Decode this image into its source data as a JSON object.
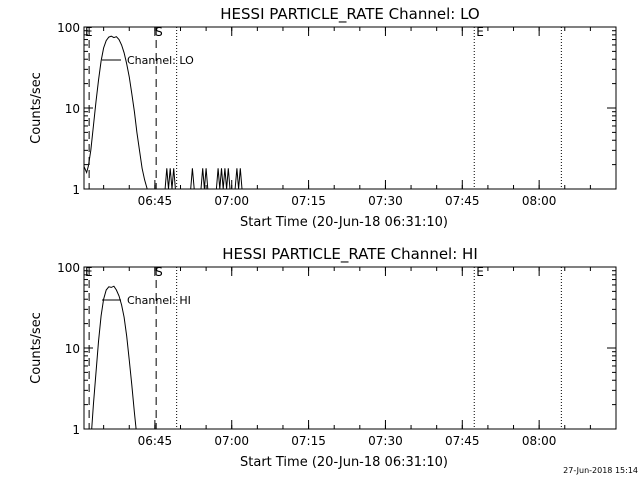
{
  "chart_data": [
    {
      "type": "line",
      "title": "HESSI PARTICLE_RATE Channel: LO",
      "xlabel": "Start Time (20-Jun-18 06:31:10)",
      "ylabel": "Counts/sec",
      "y_scale": "log",
      "ylim": [
        1,
        100
      ],
      "y_ticks": [
        "1",
        "10",
        "100"
      ],
      "x_ticks": [
        "06:45",
        "07:00",
        "07:15",
        "07:30",
        "07:45",
        "08:00"
      ],
      "legend": "Channel: LO",
      "annotations": [
        "E",
        "S",
        "E"
      ],
      "series": [
        {
          "name": "Channel: LO",
          "segments": [
            [
              {
                "t": "06:31:10",
                "v": 1.9
              },
              {
                "t": "06:31:40",
                "v": 1.6
              },
              {
                "t": "06:32:00",
                "v": 1.9
              },
              {
                "t": "06:32:30",
                "v": 3
              },
              {
                "t": "06:33:00",
                "v": 6
              },
              {
                "t": "06:33:30",
                "v": 12
              },
              {
                "t": "06:34:00",
                "v": 22
              },
              {
                "t": "06:34:30",
                "v": 38
              },
              {
                "t": "06:35:00",
                "v": 55
              },
              {
                "t": "06:35:30",
                "v": 68
              },
              {
                "t": "06:36:00",
                "v": 75
              },
              {
                "t": "06:36:30",
                "v": 77
              },
              {
                "t": "06:37:00",
                "v": 74
              },
              {
                "t": "06:37:30",
                "v": 76
              },
              {
                "t": "06:38:00",
                "v": 70
              },
              {
                "t": "06:38:30",
                "v": 60
              },
              {
                "t": "06:39:00",
                "v": 48
              },
              {
                "t": "06:39:30",
                "v": 35
              },
              {
                "t": "06:40:00",
                "v": 24
              },
              {
                "t": "06:40:30",
                "v": 15
              },
              {
                "t": "06:41:00",
                "v": 9
              },
              {
                "t": "06:41:30",
                "v": 5
              },
              {
                "t": "06:42:00",
                "v": 3
              },
              {
                "t": "06:42:30",
                "v": 1.8
              },
              {
                "t": "06:43:00",
                "v": 1.3
              },
              {
                "t": "06:43:30",
                "v": 1
              }
            ],
            [
              {
                "t": "06:47:00",
                "v": 1
              },
              {
                "t": "06:47:20",
                "v": 1.8
              },
              {
                "t": "06:47:40",
                "v": 1
              },
              {
                "t": "06:48:00",
                "v": 1.8
              },
              {
                "t": "06:48:20",
                "v": 1
              },
              {
                "t": "06:48:40",
                "v": 1.8
              },
              {
                "t": "06:49:00",
                "v": 1
              }
            ],
            [
              {
                "t": "06:52:00",
                "v": 1
              },
              {
                "t": "06:52:20",
                "v": 1.8
              },
              {
                "t": "06:52:40",
                "v": 1
              }
            ],
            [
              {
                "t": "06:54:00",
                "v": 1
              },
              {
                "t": "06:54:20",
                "v": 1.8
              },
              {
                "t": "06:54:40",
                "v": 1
              },
              {
                "t": "06:55:00",
                "v": 1.8
              },
              {
                "t": "06:55:20",
                "v": 1
              }
            ],
            [
              {
                "t": "06:57:00",
                "v": 1
              },
              {
                "t": "06:57:20",
                "v": 1.8
              },
              {
                "t": "06:57:40",
                "v": 1
              },
              {
                "t": "06:58:00",
                "v": 1.8
              },
              {
                "t": "06:58:20",
                "v": 1
              },
              {
                "t": "06:58:40",
                "v": 1.8
              },
              {
                "t": "06:59:00",
                "v": 1
              },
              {
                "t": "06:59:20",
                "v": 1.8
              },
              {
                "t": "06:59:40",
                "v": 1
              }
            ],
            [
              {
                "t": "07:00:40",
                "v": 1
              },
              {
                "t": "07:01:00",
                "v": 1.8
              },
              {
                "t": "07:01:20",
                "v": 1
              },
              {
                "t": "07:01:40",
                "v": 1.8
              },
              {
                "t": "07:02:00",
                "v": 1
              }
            ]
          ]
        }
      ],
      "markers": [
        {
          "t": "06:32:10",
          "style": "dashed",
          "label": "E"
        },
        {
          "t": "06:45:15",
          "style": "dashed",
          "label": "S"
        },
        {
          "t": "06:49:15",
          "style": "dotted",
          "label": ""
        },
        {
          "t": "07:47:20",
          "style": "dotted",
          "label": "E"
        },
        {
          "t": "08:04:20",
          "style": "dotted",
          "label": ""
        }
      ]
    },
    {
      "type": "line",
      "title": "HESSI PARTICLE_RATE Channel: HI",
      "xlabel": "Start Time (20-Jun-18 06:31:10)",
      "ylabel": "Counts/sec",
      "y_scale": "log",
      "ylim": [
        1,
        100
      ],
      "y_ticks": [
        "1",
        "10",
        "100"
      ],
      "x_ticks": [
        "06:45",
        "07:00",
        "07:15",
        "07:30",
        "07:45",
        "08:00"
      ],
      "legend": "Channel: HI",
      "annotations": [
        "E",
        "S",
        "E"
      ],
      "series": [
        {
          "name": "Channel: HI",
          "segments": [
            [
              {
                "t": "06:32:40",
                "v": 1
              },
              {
                "t": "06:33:00",
                "v": 2
              },
              {
                "t": "06:33:30",
                "v": 5
              },
              {
                "t": "06:34:00",
                "v": 12
              },
              {
                "t": "06:34:30",
                "v": 25
              },
              {
                "t": "06:35:00",
                "v": 40
              },
              {
                "t": "06:35:30",
                "v": 52
              },
              {
                "t": "06:36:00",
                "v": 57
              },
              {
                "t": "06:36:30",
                "v": 56
              },
              {
                "t": "06:37:00",
                "v": 58
              },
              {
                "t": "06:37:30",
                "v": 52
              },
              {
                "t": "06:38:00",
                "v": 44
              },
              {
                "t": "06:38:30",
                "v": 34
              },
              {
                "t": "06:39:00",
                "v": 24
              },
              {
                "t": "06:39:30",
                "v": 14
              },
              {
                "t": "06:40:00",
                "v": 7
              },
              {
                "t": "06:40:30",
                "v": 3.5
              },
              {
                "t": "06:41:00",
                "v": 1.6
              },
              {
                "t": "06:41:20",
                "v": 1
              }
            ]
          ]
        }
      ],
      "markers": [
        {
          "t": "06:32:10",
          "style": "dashed",
          "label": "E"
        },
        {
          "t": "06:45:15",
          "style": "dashed",
          "label": "S"
        },
        {
          "t": "06:49:15",
          "style": "dotted",
          "label": ""
        },
        {
          "t": "07:47:20",
          "style": "dotted",
          "label": "E"
        },
        {
          "t": "08:04:20",
          "style": "dotted",
          "label": ""
        }
      ]
    }
  ],
  "timestamp": "27-Jun-2018 15:14"
}
